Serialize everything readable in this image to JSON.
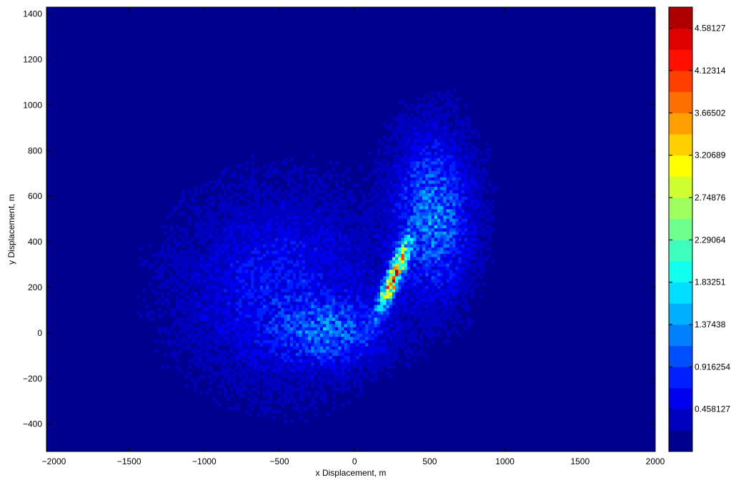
{
  "chart_data": {
    "type": "heatmap",
    "title": "",
    "xlabel": "x Displacement, m",
    "ylabel": "y Displacement, m",
    "xlim": [
      -2050,
      2000
    ],
    "ylim": [
      -520,
      1430
    ],
    "xticks": [
      -2000,
      -1500,
      -1000,
      -500,
      0,
      500,
      1000,
      1500,
      2000
    ],
    "xtick_labels": [
      "−2000",
      "−1500",
      "−1000",
      "−500",
      "0",
      "500",
      "1000",
      "1500",
      "2000"
    ],
    "yticks": [
      -400,
      -200,
      0,
      200,
      400,
      600,
      800,
      1000,
      1200,
      1400
    ],
    "ytick_labels": [
      "−400",
      "−200",
      "0",
      "200",
      "400",
      "600",
      "800",
      "1000",
      "1200",
      "1400"
    ],
    "colormap": "jet",
    "colorbar": {
      "min": 0,
      "max": 4.81,
      "levels": 21,
      "ticks": [
        0.458127,
        0.916254,
        1.37438,
        1.83251,
        2.29064,
        2.74876,
        3.20689,
        3.66502,
        4.12314,
        4.58127
      ],
      "tick_labels": [
        "0.458127",
        "0.916254",
        "1.37438",
        "1.83251",
        "2.29064",
        "2.74876",
        "3.20689",
        "3.66502",
        "4.12314",
        "4.58127"
      ],
      "colors": [
        "#00008f",
        "#0000bf",
        "#0000ef",
        "#001fff",
        "#004fff",
        "#007fff",
        "#00afff",
        "#00dfff",
        "#10ffef",
        "#3fffbf",
        "#6fff8f",
        "#9fff5f",
        "#cfff2f",
        "#ffff00",
        "#ffcf00",
        "#ff9f00",
        "#ff6f00",
        "#ff3f00",
        "#ff0f00",
        "#df0000",
        "#af0000"
      ]
    },
    "grid": false,
    "features": [
      {
        "label": "main ridge",
        "center": [
          260,
          250
        ],
        "peak_value": 4.8
      },
      {
        "label": "upper-right plume",
        "center": [
          520,
          520
        ],
        "peak_value": 1.6
      },
      {
        "label": "left lobe",
        "center": [
          -500,
          200
        ],
        "peak_value": 1.1
      },
      {
        "label": "lower tail",
        "center": [
          -150,
          0
        ],
        "peak_value": 1.4
      },
      {
        "label": "background",
        "peak_value": 0.3
      }
    ]
  }
}
